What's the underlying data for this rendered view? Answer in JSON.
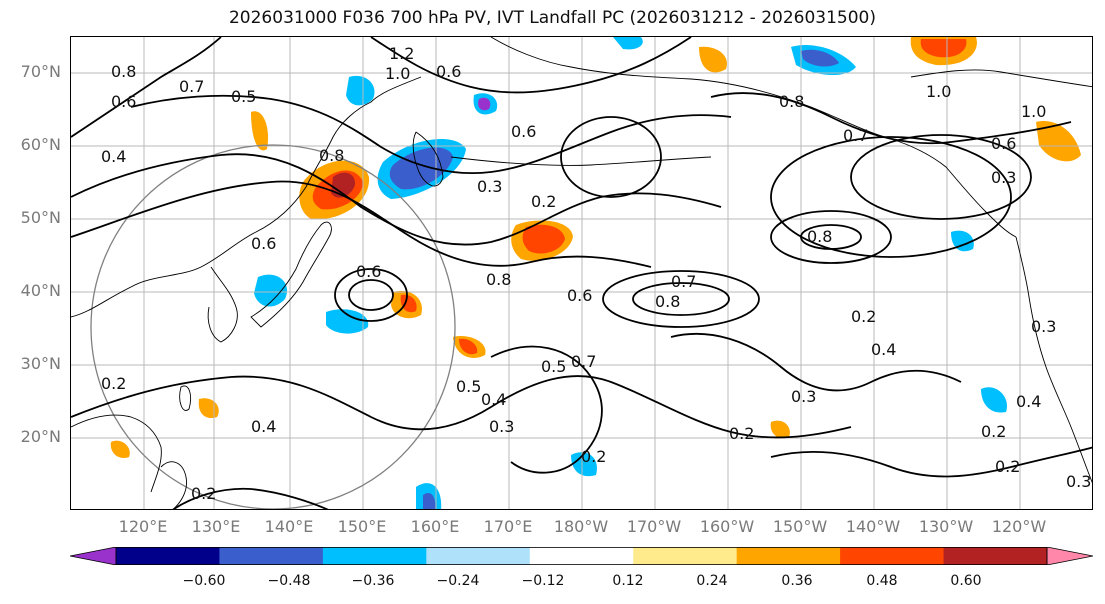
{
  "title": "2026031000 F036 700 hPa PV, IVT Landfall PC (2026031212 - 2026031500)",
  "lat_labels": [
    "70°N",
    "60°N",
    "50°N",
    "40°N",
    "30°N",
    "20°N"
  ],
  "lon_labels": [
    "120°E",
    "130°E",
    "140°E",
    "150°E",
    "160°E",
    "170°E",
    "180°W",
    "170°W",
    "160°W",
    "150°W",
    "140°W",
    "130°W",
    "120°W"
  ],
  "colorbar": {
    "colors": [
      "#9932cc",
      "#00008b",
      "#3a5fcd",
      "#00bfff",
      "#afe1fa",
      "#ffffff",
      "#ffeb8b",
      "#ffa500",
      "#ff4500",
      "#b22222",
      "#ff88aa"
    ],
    "tick_labels": [
      "−0.60",
      "−0.48",
      "−0.36",
      "−0.24",
      "−0.12",
      "0.12",
      "0.24",
      "0.36",
      "0.48",
      "0.60"
    ]
  },
  "contour_labels": [
    "1.2",
    "1.0",
    "0.8",
    "0.7",
    "0.6",
    "0.5",
    "0.4",
    "0.3",
    "0.2",
    "0.8",
    "0.6",
    "0.6",
    "0.8",
    "0.6",
    "0.7",
    "0.3",
    "0.8",
    "0.8",
    "0.6",
    "0.8",
    "0.7",
    "0.6",
    "0.2",
    "0.5",
    "0.7",
    "0.5",
    "0.4",
    "0.3",
    "0.2",
    "0.4",
    "0.2",
    "0.2",
    "0.4",
    "0.2",
    "0.3",
    "0.2",
    "0.2",
    "1.0",
    "0.6",
    "1.0",
    "0.3",
    "0.4",
    "0.3"
  ],
  "map": {
    "grid_color": "#b8b8b8",
    "coast_color": "#000000",
    "contour_color": "#000000",
    "circle_color": "#808080"
  }
}
